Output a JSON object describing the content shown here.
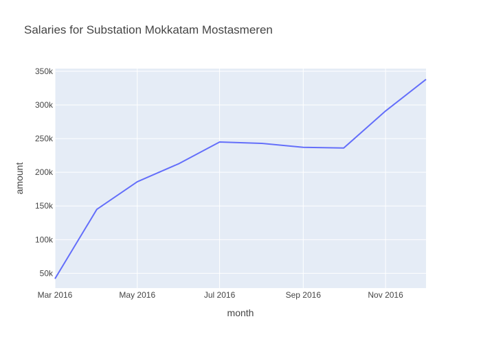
{
  "chart_data": {
    "type": "line",
    "title": "Salaries for Substation Mokkatam Mostasmeren",
    "xlabel": "month",
    "ylabel": "amount",
    "x": [
      "2016-03-01",
      "2016-04-01",
      "2016-05-01",
      "2016-06-01",
      "2016-07-01",
      "2016-08-01",
      "2016-09-01",
      "2016-10-01",
      "2016-11-01",
      "2016-12-01"
    ],
    "series": [
      {
        "values": [
          42000,
          145000,
          186000,
          213000,
          245000,
          243000,
          237000,
          236000,
          291000,
          338000
        ]
      }
    ],
    "x_ticks": [
      "2016-03-01",
      "2016-05-01",
      "2016-07-01",
      "2016-09-01",
      "2016-11-01"
    ],
    "x_tick_labels": [
      "Mar 2016",
      "May 2016",
      "Jul 2016",
      "Sep 2016",
      "Nov 2016"
    ],
    "y_ticks": [
      50000,
      100000,
      150000,
      200000,
      250000,
      300000,
      350000
    ],
    "y_tick_labels": [
      "50k",
      "100k",
      "150k",
      "200k",
      "250k",
      "300k",
      "350k"
    ],
    "ylim": [
      28000,
      354000
    ],
    "xlim": [
      "2016-03-01",
      "2016-12-01"
    ],
    "grid": true,
    "colors": {
      "line": "#636efa",
      "plot_bg": "#e5ecf6",
      "grid": "#ffffff"
    }
  }
}
